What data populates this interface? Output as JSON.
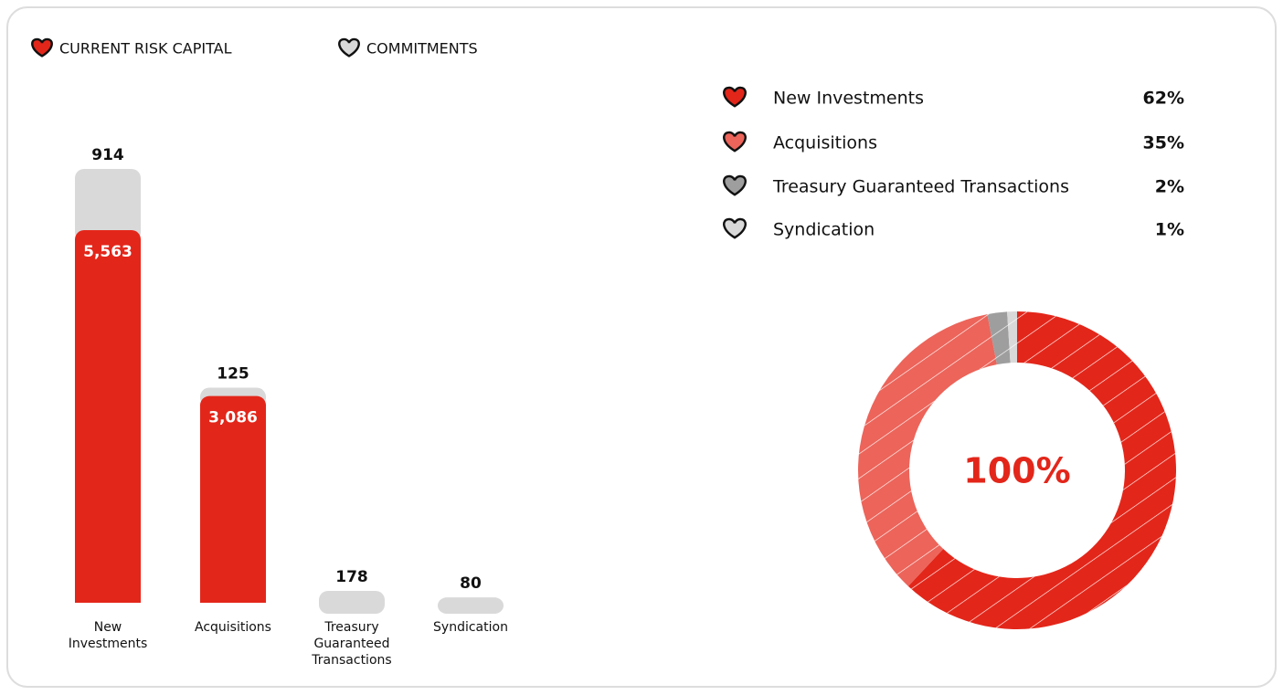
{
  "chart_data": [
    {
      "type": "bar",
      "stacked": true,
      "categories": [
        "New Investments",
        "Acquisitions",
        "Treasury Guaranteed Transactions",
        "Syndication"
      ],
      "series": [
        {
          "name": "CURRENT RISK CAPITAL",
          "color": "#e3261a",
          "values": [
            5563,
            3086,
            null,
            null
          ],
          "value_labels": [
            "5,563",
            "3,086",
            null,
            null
          ]
        },
        {
          "name": "COMMITMENTS",
          "color": "#d9d9d9",
          "values": [
            914,
            125,
            178,
            80
          ]
        }
      ]
    },
    {
      "type": "donut",
      "categories": [
        "New Investments",
        "Acquisitions",
        "Treasury Guaranteed Transactions",
        "Syndication"
      ],
      "values": [
        62,
        35,
        2,
        1
      ],
      "value_labels": [
        "62%",
        "35%",
        "2%",
        "1%"
      ],
      "colors": [
        "#e3261a",
        "#ec645a",
        "#9e9e9e",
        "#d9d9d9"
      ],
      "center_label": "100%"
    }
  ]
}
